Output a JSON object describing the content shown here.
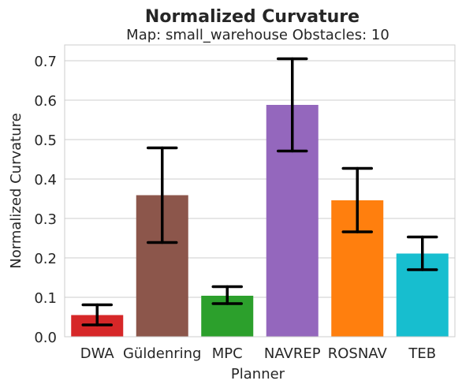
{
  "chart_data": {
    "type": "bar",
    "title": "Normalized Curvature",
    "subtitle": "Map: small_warehouse Obstacles: 10",
    "xlabel": "Planner",
    "ylabel": "Normalized Curvature",
    "ylim": [
      0,
      0.74
    ],
    "yticks": [
      "0.0",
      "0.1",
      "0.2",
      "0.3",
      "0.4",
      "0.5",
      "0.6",
      "0.7"
    ],
    "grid": true,
    "categories": [
      "DWA",
      "Güldenring",
      "MPC",
      "NAVREP",
      "ROSNAV",
      "TEB"
    ],
    "values": [
      0.055,
      0.359,
      0.104,
      0.588,
      0.346,
      0.211
    ],
    "error_low": [
      0.03,
      0.239,
      0.084,
      0.471,
      0.266,
      0.17
    ],
    "error_high": [
      0.081,
      0.479,
      0.127,
      0.705,
      0.427,
      0.253
    ],
    "colors": [
      "#d62728",
      "#8c564b",
      "#2ca02c",
      "#9467bd",
      "#ff7f0e",
      "#17becf"
    ]
  }
}
